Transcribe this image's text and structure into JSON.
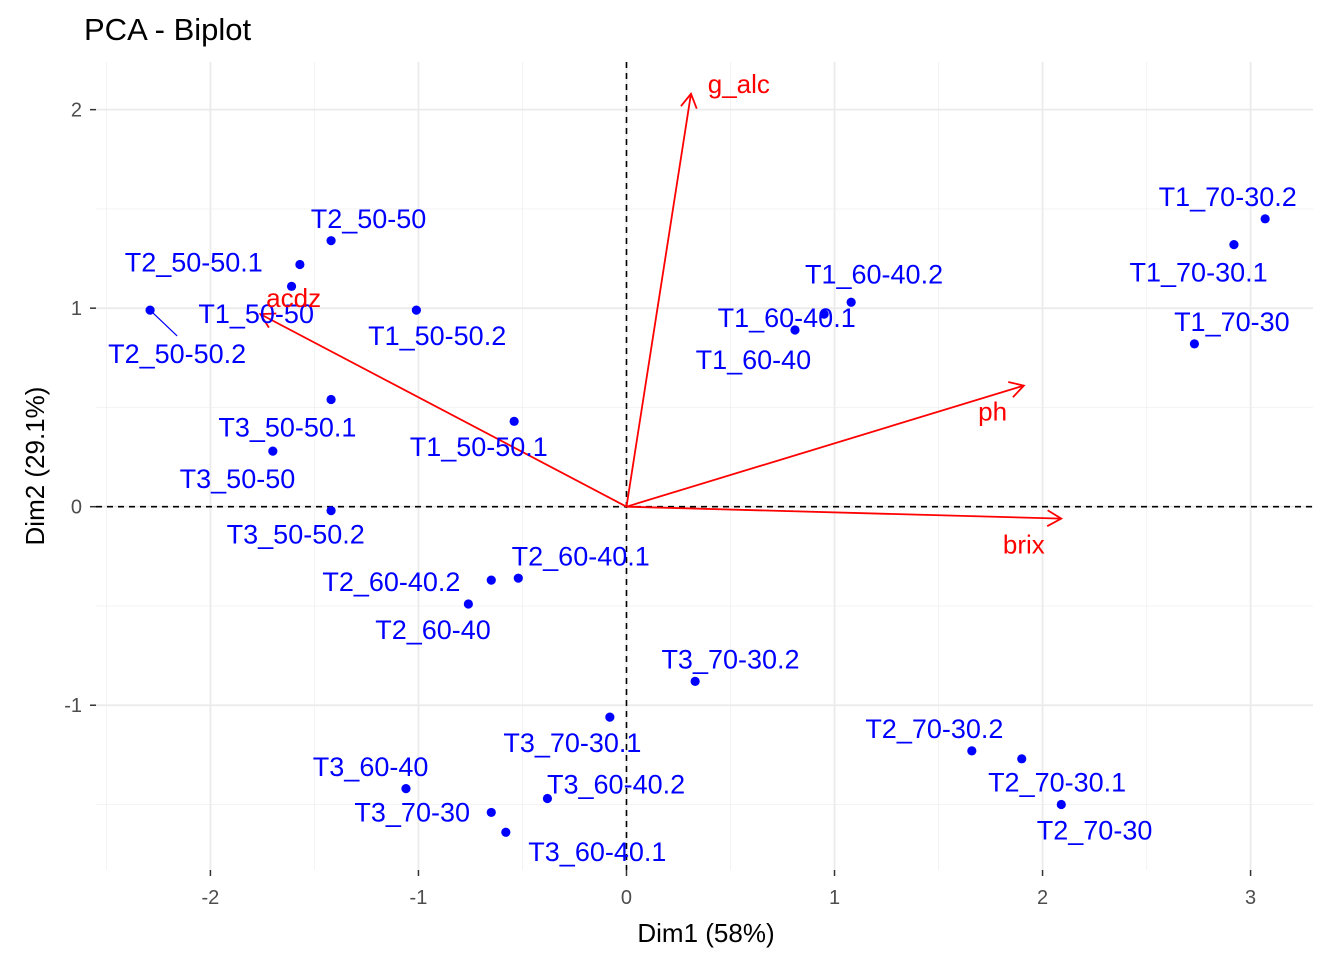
{
  "chart_data": {
    "type": "scatter",
    "title": "PCA - Biplot",
    "xlabel": "Dim1 (58%)",
    "ylabel": "Dim2 (29.1%)",
    "xlim": [
      -2.55,
      3.3
    ],
    "ylim": [
      -1.83,
      2.24
    ],
    "xticks": [
      -2,
      -1,
      0,
      1,
      2,
      3
    ],
    "yticks": [
      -1,
      0,
      1,
      2
    ],
    "xtick_labels": [
      "-2",
      "-1",
      "0",
      "1",
      "2",
      "3"
    ],
    "ytick_labels": [
      "-1",
      "0",
      "1",
      "2"
    ],
    "grid": true,
    "point_color": "#0000FF",
    "arrow_color": "#FF0000",
    "individuals": [
      {
        "label": "T2_50-50",
        "x": -1.42,
        "y": 1.34,
        "lx": -1.24,
        "ly": 1.45
      },
      {
        "label": "T2_50-50.1",
        "x": -1.57,
        "y": 1.22,
        "lx": -2.08,
        "ly": 1.23
      },
      {
        "label": "T2_50-50.2",
        "x": -2.29,
        "y": 0.99,
        "lx": -2.16,
        "ly": 0.77
      },
      {
        "label": "T1_50-50",
        "x": -1.61,
        "y": 1.11,
        "lx": -1.78,
        "ly": 0.97
      },
      {
        "label": "T1_50-50.2",
        "x": -1.01,
        "y": 0.99,
        "lx": -0.91,
        "ly": 0.86
      },
      {
        "label": "T3_50-50.1",
        "x": -1.42,
        "y": 0.54,
        "lx": -1.63,
        "ly": 0.4
      },
      {
        "label": "T1_50-50.1",
        "x": -0.54,
        "y": 0.43,
        "lx": -0.71,
        "ly": 0.3
      },
      {
        "label": "T3_50-50",
        "x": -1.7,
        "y": 0.28,
        "lx": -1.87,
        "ly": 0.14
      },
      {
        "label": "T3_50-50.2",
        "x": -1.42,
        "y": -0.02,
        "lx": -1.59,
        "ly": -0.14
      },
      {
        "label": "T2_60-40.1",
        "x": -0.52,
        "y": -0.36,
        "lx": -0.22,
        "ly": -0.25
      },
      {
        "label": "T2_60-40.2",
        "x": -0.65,
        "y": -0.37,
        "lx": -1.13,
        "ly": -0.38
      },
      {
        "label": "T2_60-40",
        "x": -0.76,
        "y": -0.49,
        "lx": -0.93,
        "ly": -0.62
      },
      {
        "label": "T1_60-40.2",
        "x": 1.08,
        "y": 1.03,
        "lx": 1.19,
        "ly": 1.17
      },
      {
        "label": "T1_60-40.1",
        "x": 0.95,
        "y": 0.97,
        "lx": 0.77,
        "ly": 0.95
      },
      {
        "label": "T1_60-40",
        "x": 0.81,
        "y": 0.89,
        "lx": 0.61,
        "ly": 0.74
      },
      {
        "label": "T1_70-30.2",
        "x": 3.07,
        "y": 1.45,
        "lx": 2.89,
        "ly": 1.56
      },
      {
        "label": "T1_70-30.1",
        "x": 2.92,
        "y": 1.32,
        "lx": 2.75,
        "ly": 1.18
      },
      {
        "label": "T1_70-30",
        "x": 2.73,
        "y": 0.82,
        "lx": 2.91,
        "ly": 0.93
      },
      {
        "label": "T3_70-30.2",
        "x": 0.33,
        "y": -0.88,
        "lx": 0.5,
        "ly": -0.77
      },
      {
        "label": "T3_70-30.1",
        "x": -0.08,
        "y": -1.06,
        "lx": -0.26,
        "ly": -1.19
      },
      {
        "label": "T2_70-30.2",
        "x": 1.66,
        "y": -1.23,
        "lx": 1.48,
        "ly": -1.12
      },
      {
        "label": "T2_70-30.1",
        "x": 1.9,
        "y": -1.27,
        "lx": 2.07,
        "ly": -1.39
      },
      {
        "label": "T2_70-30",
        "x": 2.09,
        "y": -1.5,
        "lx": 2.25,
        "ly": -1.63
      },
      {
        "label": "T3_60-40",
        "x": -1.06,
        "y": -1.42,
        "lx": -1.23,
        "ly": -1.31
      },
      {
        "label": "T3_60-40.2",
        "x": -0.38,
        "y": -1.47,
        "lx": -0.05,
        "ly": -1.4
      },
      {
        "label": "T3_70-30",
        "x": -0.65,
        "y": -1.54,
        "lx": -1.03,
        "ly": -1.54
      },
      {
        "label": "T3_60-40.1",
        "x": -0.58,
        "y": -1.64,
        "lx": -0.14,
        "ly": -1.74
      }
    ],
    "variables": [
      {
        "label": "g_alc",
        "x": 0.31,
        "y": 2.08,
        "lx": 0.54,
        "ly": 2.13
      },
      {
        "label": "acdz",
        "x": -1.76,
        "y": 0.97,
        "lx": -1.6,
        "ly": 1.05
      },
      {
        "label": "ph",
        "x": 1.91,
        "y": 0.61,
        "lx": 1.76,
        "ly": 0.48
      },
      {
        "label": "brix",
        "x": 2.09,
        "y": -0.06,
        "lx": 1.91,
        "ly": -0.19
      }
    ],
    "repel_segments": [
      {
        "x1": -2.29,
        "y1": 0.99,
        "x2": -2.16,
        "y2": 0.86
      }
    ]
  }
}
